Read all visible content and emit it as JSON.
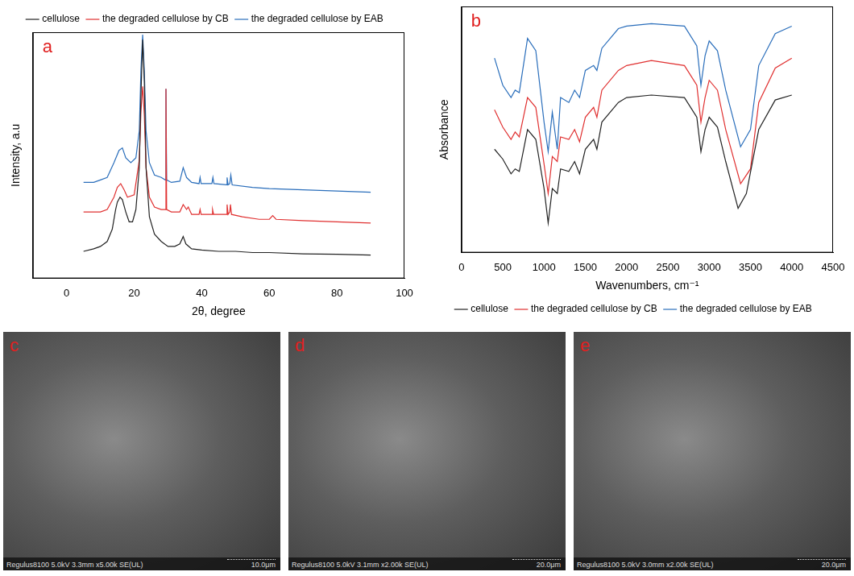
{
  "chart_data": [
    {
      "type": "line",
      "annotations": [
        "a"
      ],
      "x_label": "2θ, degree",
      "y_label": "Intensity, a.u",
      "xlim": [
        -10,
        100
      ],
      "xticks": [
        0,
        20,
        40,
        60,
        80,
        100
      ],
      "ylim": [
        0,
        100
      ],
      "tick_labels": "x",
      "grid": false,
      "legend": "top",
      "series": [
        {
          "name": "cellulose",
          "color": "#222222",
          "x": [
            5,
            8,
            10,
            12,
            13.5,
            14.5,
            15,
            15.8,
            16.5,
            17.5,
            18.5,
            19.5,
            20.5,
            21.5,
            22,
            22.5,
            23,
            23.5,
            24.5,
            26,
            28,
            30,
            32,
            33.5,
            34.5,
            35.3,
            37,
            40,
            45,
            50,
            55,
            60,
            70,
            80,
            90
          ],
          "values": [
            11,
            12,
            13,
            15,
            20,
            28,
            31,
            33,
            32,
            27,
            23,
            23,
            28,
            45,
            75,
            97,
            80,
            45,
            25,
            18,
            15,
            13,
            13,
            14,
            17,
            14,
            12,
            11.5,
            11,
            11,
            10.5,
            10.5,
            10,
            9.8,
            9.5
          ]
        },
        {
          "name": "the degraded cellulose by CB",
          "color": "#e03030",
          "x": [
            5,
            8,
            10,
            12,
            14,
            15,
            16,
            17,
            18,
            20,
            21.5,
            22,
            22.5,
            23,
            23.5,
            24.5,
            26,
            28,
            29.2,
            29.4,
            29.6,
            31,
            33.5,
            34.5,
            35.5,
            36,
            37,
            39.2,
            39.5,
            39.8,
            43,
            43.2,
            43.5,
            47.3,
            47.5,
            47.8,
            48.3,
            48.5,
            48.8,
            52,
            57,
            60,
            61,
            62,
            70,
            80,
            90
          ],
          "values": [
            27,
            27,
            27,
            28,
            33,
            37,
            38.5,
            36,
            33,
            34,
            48,
            68,
            78,
            66,
            45,
            33,
            29,
            28,
            28,
            77,
            28,
            27,
            27,
            30,
            28,
            29,
            26,
            26,
            28,
            26,
            26,
            28,
            26,
            26,
            30,
            26,
            27,
            30,
            26,
            25,
            24,
            24,
            25.5,
            24,
            23.5,
            23,
            22.5
          ]
        },
        {
          "name": "the degraded cellulose by EAB",
          "color": "#2a6ebb",
          "x": [
            5,
            8,
            10,
            12,
            14,
            15.5,
            16.5,
            17.5,
            19,
            20.5,
            21.5,
            22,
            22.5,
            23,
            23.5,
            24.5,
            26,
            28,
            29.2,
            29.4,
            29.6,
            31,
            33.5,
            34.5,
            35.5,
            37,
            39.2,
            39.5,
            39.8,
            43,
            43.3,
            43.6,
            47.3,
            47.5,
            47.8,
            48.3,
            48.6,
            49,
            55,
            60,
            70,
            80,
            90
          ],
          "values": [
            39,
            39,
            40,
            41,
            47,
            52,
            53,
            49,
            47,
            49,
            60,
            85,
            99,
            84,
            60,
            47,
            42,
            41,
            40,
            77,
            40,
            39,
            39.5,
            45,
            41,
            39,
            38.5,
            41,
            38.5,
            38.5,
            41,
            38.5,
            38,
            41,
            38,
            38.5,
            42,
            38,
            37,
            36.5,
            36,
            35.5,
            35
          ]
        }
      ]
    },
    {
      "type": "line",
      "annotations": [
        "b"
      ],
      "x_label": "Wavenumbers, cm⁻¹",
      "y_label": "Absorbance",
      "xlim": [
        0,
        4500
      ],
      "xticks": [
        0,
        500,
        1000,
        1500,
        2000,
        2500,
        3000,
        3500,
        4000,
        4500
      ],
      "ylim": [
        0,
        100
      ],
      "tick_labels": "x",
      "grid": false,
      "legend": "bottom",
      "series": [
        {
          "name": "cellulose",
          "color": "#222222",
          "x": [
            400,
            500,
            600,
            650,
            700,
            800,
            900,
            1000,
            1050,
            1100,
            1160,
            1200,
            1300,
            1370,
            1430,
            1500,
            1600,
            1640,
            1700,
            1900,
            2000,
            2300,
            2700,
            2850,
            2900,
            2950,
            3000,
            3100,
            3200,
            3350,
            3450,
            3600,
            3800,
            4000
          ],
          "values": [
            42,
            38,
            32,
            34,
            33,
            50,
            46,
            26,
            12,
            26,
            24,
            34,
            33,
            37,
            32,
            42,
            46,
            42,
            53,
            61,
            63,
            64,
            63,
            55,
            41,
            50,
            55,
            51,
            37,
            18,
            24,
            50,
            62,
            64
          ]
        },
        {
          "name": "the degraded cellulose by CB",
          "color": "#e03030",
          "x": [
            400,
            500,
            600,
            650,
            700,
            800,
            900,
            1000,
            1050,
            1100,
            1160,
            1200,
            1300,
            1370,
            1430,
            1500,
            1600,
            1640,
            1700,
            1900,
            2000,
            2300,
            2700,
            2850,
            2900,
            2950,
            3000,
            3100,
            3200,
            3380,
            3500,
            3600,
            3800,
            4000
          ],
          "values": [
            58,
            51,
            46,
            49,
            47,
            63,
            59,
            36,
            24,
            39,
            37,
            47,
            46,
            50,
            45,
            55,
            59,
            55,
            66,
            74,
            76,
            78,
            76,
            68,
            53,
            63,
            70,
            66,
            50,
            28,
            34,
            61,
            75,
            79
          ]
        },
        {
          "name": "the degraded cellulose by EAB",
          "color": "#2a6ebb",
          "x": [
            400,
            500,
            600,
            650,
            700,
            800,
            900,
            1000,
            1050,
            1100,
            1160,
            1200,
            1300,
            1370,
            1430,
            1500,
            1600,
            1640,
            1700,
            1900,
            2000,
            2300,
            2700,
            2850,
            2900,
            2950,
            3000,
            3100,
            3200,
            3380,
            3500,
            3600,
            3800,
            4000
          ],
          "values": [
            79,
            68,
            63,
            66,
            65,
            87,
            82,
            53,
            41,
            57,
            42,
            63,
            61,
            66,
            63,
            74,
            76,
            74,
            83,
            91,
            92,
            93,
            92,
            84,
            68,
            80,
            86,
            82,
            66,
            43,
            50,
            76,
            89,
            92
          ]
        }
      ]
    }
  ],
  "images": [
    {
      "label": "c",
      "caption": "Regulus8100 5.0kV 3.3mm x5.00k SE(UL)",
      "scale_bar": "10.0μm"
    },
    {
      "label": "d",
      "caption": "Regulus8100 5.0kV 3.1mm x2.00k SE(UL)",
      "scale_bar": "20.0μm"
    },
    {
      "label": "e",
      "caption": "Regulus8100 5.0kV 3.0mm x2.00k SE(UL)",
      "scale_bar": "20.0μm"
    }
  ]
}
